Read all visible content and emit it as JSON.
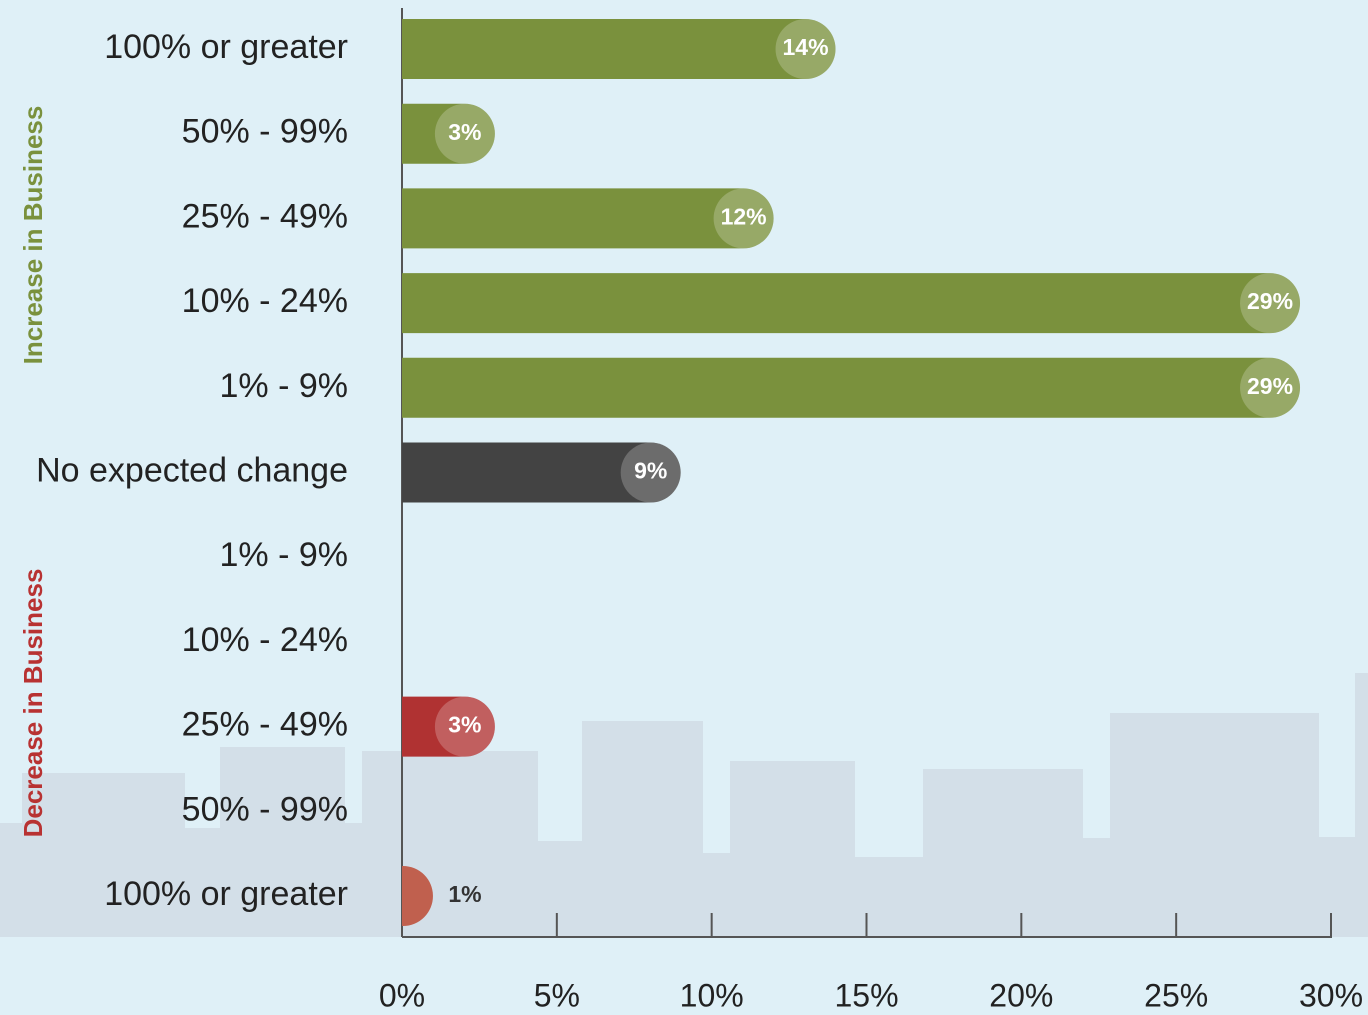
{
  "chart_data": {
    "type": "bar",
    "orientation": "horizontal",
    "categories": [
      "100% or greater",
      "50% - 99%",
      "25% - 49%",
      "10% - 24%",
      "1% - 9%",
      "No expected change",
      "1% - 9%",
      "10% - 24%",
      "25% - 49%",
      "50% - 99%",
      "100% or greater"
    ],
    "values": [
      14,
      3,
      12,
      29,
      29,
      9,
      null,
      null,
      3,
      null,
      1
    ],
    "value_labels": [
      "14%",
      "3%",
      "12%",
      "29%",
      "29%",
      "9%",
      null,
      null,
      "3%",
      null,
      "1%"
    ],
    "colors": [
      "#7a913d",
      "#7a913d",
      "#7a913d",
      "#7a913d",
      "#7a913d",
      "#434343",
      null,
      null,
      "#b03232",
      null,
      "#c0604e"
    ],
    "groups": [
      {
        "label": "Increase in Business",
        "color": "#7a913d"
      },
      {
        "label": "Decrease in Business",
        "color": "#b83232"
      }
    ],
    "xlim": [
      0,
      30
    ],
    "xticks": [
      {
        "value": 0,
        "label": "0%"
      },
      {
        "value": 5,
        "label": "5%"
      },
      {
        "value": 10,
        "label": "10%"
      },
      {
        "value": 15,
        "label": "15%"
      },
      {
        "value": 20,
        "label": "20%"
      },
      {
        "value": 25,
        "label": "25%"
      },
      {
        "value": 30,
        "label": "30%"
      }
    ]
  }
}
